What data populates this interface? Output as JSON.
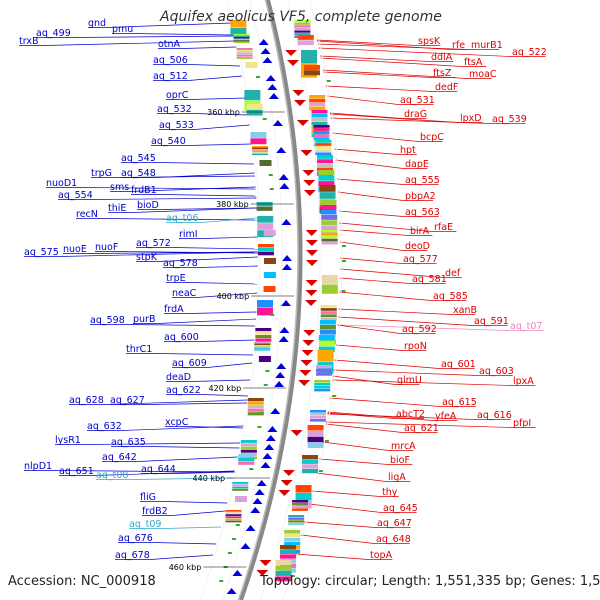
{
  "title": "Aquifex aeolicus VF5, complete genome",
  "accession": "Accession: NC_000918",
  "summary": "Topology: circular; Length: 1,551,335 bp; Genes: 1,579",
  "colors": {
    "left_label": "#0000cc",
    "right_label": "#dd0000",
    "left_rna": "#33aacc",
    "right_rna": "#ee88bb",
    "backbone": "#888888"
  },
  "scale_marks": [
    "360 kbp",
    "380 kbp",
    "400 kbp",
    "420 kbp",
    "440 kbp",
    "460 kbp"
  ],
  "left_labels": [
    {
      "text": "gnd"
    },
    {
      "text": "aq_499"
    },
    {
      "text": "pmu"
    },
    {
      "text": "trxB"
    },
    {
      "text": "otnA"
    },
    {
      "text": "aq_506"
    },
    {
      "text": "aq_512"
    },
    {
      "text": "oprC"
    },
    {
      "text": "aq_532"
    },
    {
      "text": "aq_533"
    },
    {
      "text": "aq_540"
    },
    {
      "text": "aq_545"
    },
    {
      "text": "aq_548"
    },
    {
      "text": "trpG"
    },
    {
      "text": "nuoD1"
    },
    {
      "text": "sms"
    },
    {
      "text": "aq_554"
    },
    {
      "text": "frdB1"
    },
    {
      "text": "thiE"
    },
    {
      "text": "bioD"
    },
    {
      "text": "recN"
    },
    {
      "text": "aq_t06",
      "rna": true
    },
    {
      "text": "rimI"
    },
    {
      "text": "aq_572"
    },
    {
      "text": "aq_575"
    },
    {
      "text": "nuoE"
    },
    {
      "text": "nuoF"
    },
    {
      "text": "stpK"
    },
    {
      "text": "aq_578"
    },
    {
      "text": "trpE"
    },
    {
      "text": "neaC"
    },
    {
      "text": "frdA"
    },
    {
      "text": "aq_598"
    },
    {
      "text": "purB"
    },
    {
      "text": "aq_600"
    },
    {
      "text": "thrC1"
    },
    {
      "text": "aq_609"
    },
    {
      "text": "deaD"
    },
    {
      "text": "aq_622"
    },
    {
      "text": "aq_628"
    },
    {
      "text": "aq_627"
    },
    {
      "text": "xcpC"
    },
    {
      "text": "aq_632"
    },
    {
      "text": "lysR1"
    },
    {
      "text": "aq_635"
    },
    {
      "text": "aq_642"
    },
    {
      "text": "aq_644"
    },
    {
      "text": "nlpD1"
    },
    {
      "text": "aq_651"
    },
    {
      "text": "aq_t08",
      "rna": true
    },
    {
      "text": "fliG"
    },
    {
      "text": "frdB2"
    },
    {
      "text": "aq_t09",
      "rna": true
    },
    {
      "text": "aq_676"
    },
    {
      "text": "aq_678"
    }
  ],
  "right_labels": [
    {
      "text": "spsK"
    },
    {
      "text": "rfe"
    },
    {
      "text": "murB1"
    },
    {
      "text": "aq_522"
    },
    {
      "text": "ddlA"
    },
    {
      "text": "ftsA"
    },
    {
      "text": "ftsZ"
    },
    {
      "text": "moaC"
    },
    {
      "text": "dedF"
    },
    {
      "text": "aq_531"
    },
    {
      "text": "draG"
    },
    {
      "text": "lpxD"
    },
    {
      "text": "aq_539"
    },
    {
      "text": "bcpC"
    },
    {
      "text": "hpt"
    },
    {
      "text": "dapE"
    },
    {
      "text": "aq_555"
    },
    {
      "text": "pbpA2"
    },
    {
      "text": "aq_563"
    },
    {
      "text": "rfaE"
    },
    {
      "text": "birA"
    },
    {
      "text": "deoD"
    },
    {
      "text": "aq_577"
    },
    {
      "text": "def"
    },
    {
      "text": "aq_581"
    },
    {
      "text": "aq_585"
    },
    {
      "text": "xanB"
    },
    {
      "text": "aq_591"
    },
    {
      "text": "aq_t07",
      "rna": true
    },
    {
      "text": "aq_592"
    },
    {
      "text": "rpoN"
    },
    {
      "text": "aq_601"
    },
    {
      "text": "aq_603"
    },
    {
      "text": "glmU"
    },
    {
      "text": "lpxA"
    },
    {
      "text": "aq_615"
    },
    {
      "text": "abcT2"
    },
    {
      "text": "yfeA"
    },
    {
      "text": "aq_616"
    },
    {
      "text": "aq_621"
    },
    {
      "text": "pfpI"
    },
    {
      "text": "mrcA"
    },
    {
      "text": "bioF"
    },
    {
      "text": "ligA"
    },
    {
      "text": "thy"
    },
    {
      "text": "aq_645"
    },
    {
      "text": "aq_647"
    },
    {
      "text": "aq_648"
    },
    {
      "text": "topA"
    }
  ]
}
